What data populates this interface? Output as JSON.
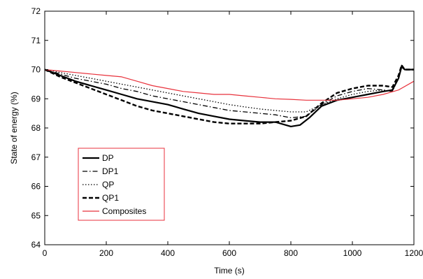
{
  "chart_data": {
    "type": "line",
    "title": "",
    "xlabel": "Time (s)",
    "ylabel": "State of energy (%)",
    "xlim": [
      0,
      1200
    ],
    "ylim": [
      64,
      72
    ],
    "xticks": [
      0,
      200,
      400,
      600,
      800,
      1000,
      1200
    ],
    "yticks": [
      64,
      65,
      66,
      67,
      68,
      69,
      70,
      71,
      72
    ],
    "grid": false,
    "legend_position": "bottom-left",
    "series": [
      {
        "name": "DP",
        "color": "#000000",
        "style": "solid-thick",
        "x": [
          0,
          50,
          100,
          150,
          200,
          250,
          300,
          350,
          400,
          450,
          500,
          550,
          600,
          650,
          700,
          750,
          800,
          830,
          860,
          900,
          950,
          1000,
          1050,
          1100,
          1130,
          1150,
          1160,
          1170,
          1200
        ],
        "y": [
          70.0,
          69.8,
          69.6,
          69.45,
          69.3,
          69.15,
          69.0,
          68.9,
          68.8,
          68.65,
          68.5,
          68.4,
          68.3,
          68.25,
          68.2,
          68.2,
          68.05,
          68.1,
          68.35,
          68.75,
          68.95,
          69.05,
          69.15,
          69.25,
          69.3,
          69.7,
          70.1,
          70.0,
          70.0
        ]
      },
      {
        "name": "DP1",
        "color": "#000000",
        "style": "dashdot",
        "x": [
          0,
          50,
          100,
          150,
          200,
          250,
          300,
          350,
          400,
          450,
          500,
          550,
          600,
          650,
          700,
          750,
          800,
          850,
          900,
          950,
          1000,
          1050,
          1100,
          1130,
          1150,
          1160,
          1170,
          1200
        ],
        "y": [
          70.0,
          69.85,
          69.7,
          69.6,
          69.5,
          69.35,
          69.25,
          69.1,
          69.0,
          68.9,
          68.8,
          68.7,
          68.6,
          68.55,
          68.5,
          68.45,
          68.35,
          68.4,
          68.8,
          69.1,
          69.25,
          69.35,
          69.3,
          69.25,
          69.75,
          70.15,
          70.0,
          70.0
        ]
      },
      {
        "name": "QP",
        "color": "#000000",
        "style": "dotted",
        "x": [
          0,
          50,
          100,
          150,
          200,
          250,
          300,
          350,
          400,
          450,
          500,
          550,
          600,
          650,
          700,
          750,
          800,
          850,
          900,
          950,
          1000,
          1050,
          1100,
          1130,
          1150,
          1160,
          1170,
          1200
        ],
        "y": [
          70.0,
          69.9,
          69.8,
          69.7,
          69.6,
          69.5,
          69.4,
          69.3,
          69.2,
          69.1,
          69.0,
          68.9,
          68.8,
          68.72,
          68.65,
          68.6,
          68.55,
          68.55,
          68.8,
          69.0,
          69.15,
          69.25,
          69.3,
          69.25,
          69.7,
          70.1,
          70.0,
          70.0
        ]
      },
      {
        "name": "QP1",
        "color": "#000000",
        "style": "dashed-thick",
        "x": [
          0,
          50,
          100,
          150,
          200,
          250,
          300,
          350,
          400,
          450,
          500,
          550,
          600,
          650,
          700,
          750,
          800,
          850,
          900,
          950,
          1000,
          1050,
          1100,
          1130,
          1150,
          1160,
          1170,
          1200
        ],
        "y": [
          70.0,
          69.75,
          69.55,
          69.35,
          69.15,
          68.95,
          68.75,
          68.6,
          68.5,
          68.4,
          68.3,
          68.2,
          68.15,
          68.15,
          68.15,
          68.2,
          68.25,
          68.4,
          68.85,
          69.2,
          69.35,
          69.45,
          69.45,
          69.4,
          69.8,
          70.15,
          70.0,
          70.0
        ]
      },
      {
        "name": "Composites",
        "color": "#e8323c",
        "style": "solid-thin",
        "x": [
          0,
          50,
          100,
          150,
          200,
          250,
          300,
          350,
          400,
          450,
          500,
          550,
          600,
          650,
          700,
          750,
          800,
          850,
          900,
          950,
          1000,
          1050,
          1100,
          1150,
          1200
        ],
        "y": [
          70.0,
          69.95,
          69.9,
          69.85,
          69.8,
          69.75,
          69.6,
          69.45,
          69.35,
          69.25,
          69.2,
          69.15,
          69.15,
          69.1,
          69.05,
          69.0,
          68.98,
          68.95,
          68.95,
          68.95,
          69.0,
          69.05,
          69.15,
          69.3,
          69.6
        ]
      }
    ]
  }
}
